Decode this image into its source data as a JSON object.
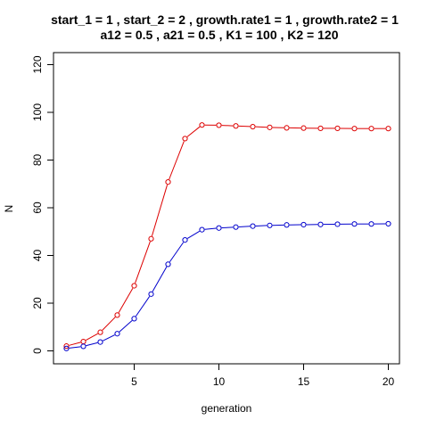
{
  "chart_data": {
    "type": "line",
    "title_line1": "start_1 = 1 , start_2 =  2 , growth.rate1 =  1 , growth.rate2 =  1",
    "title_line2": "a12 =  0.5 , a21 =  0.5 , K1 =  100 , K2 =  120",
    "xlabel": "generation",
    "ylabel": "N",
    "xlim": [
      1,
      20
    ],
    "ylim": [
      0,
      120
    ],
    "x_ticks": [
      5,
      10,
      15,
      20
    ],
    "y_ticks": [
      0,
      20,
      40,
      60,
      80,
      100,
      120
    ],
    "grid": false,
    "legend": "none",
    "x": [
      1,
      2,
      3,
      4,
      5,
      6,
      7,
      8,
      9,
      10,
      11,
      12,
      13,
      14,
      15,
      16,
      17,
      18,
      19,
      20
    ],
    "series": [
      {
        "color": "#dd0000",
        "values": [
          2,
          3.9,
          7.8,
          15,
          27.3,
          47,
          70.8,
          89,
          94.7,
          94.6,
          94.3,
          94,
          93.7,
          93.5,
          93.4,
          93.3,
          93.3,
          93.2,
          93.2,
          93.2
        ]
      },
      {
        "color": "#0000cc",
        "values": [
          1,
          1.9,
          3.7,
          7.2,
          13.5,
          23.8,
          36.3,
          46.5,
          50.8,
          51.5,
          51.9,
          52.3,
          52.6,
          52.8,
          52.9,
          53,
          53.1,
          53.2,
          53.2,
          53.3
        ]
      }
    ]
  }
}
